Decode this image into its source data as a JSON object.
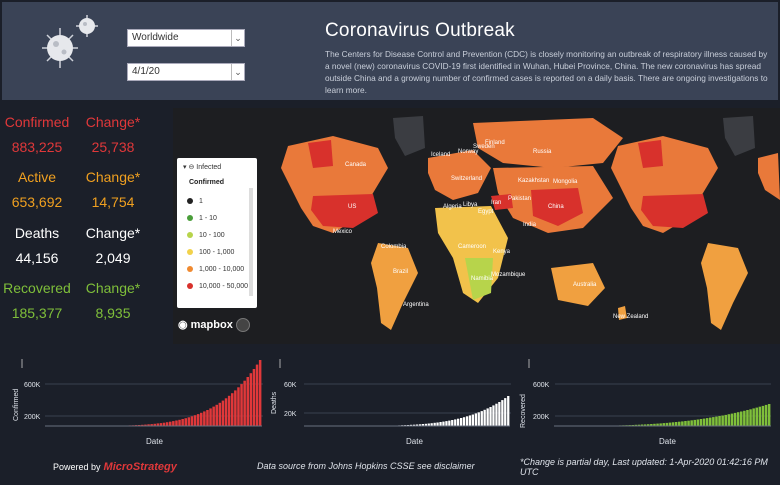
{
  "header": {
    "title": "Coronavirus Outbreak",
    "description": "The Centers for Disease Control and Prevention (CDC) is closely monitoring an outbreak of respiratory illness caused by a novel (new) coronavirus COVID-19 first identified in Wuhan, Hubei Province, China. The new coronavirus has spread outside China and a growing number of confirmed cases is reported on a daily basis. There are ongoing investigations to learn more.",
    "region_select": "Worldwide",
    "date_select": "4/1/20"
  },
  "stats": {
    "confirmed": {
      "label": "Confirmed",
      "value": "883,225",
      "change_label": "Change*",
      "change": "25,738"
    },
    "active": {
      "label": "Active",
      "value": "653,692",
      "change_label": "Change*",
      "change": "14,754"
    },
    "deaths": {
      "label": "Deaths",
      "value": "44,156",
      "change_label": "Change*",
      "change": "2,049"
    },
    "recovered": {
      "label": "Recovered",
      "value": "185,377",
      "change_label": "Change*",
      "change": "8,935"
    }
  },
  "map": {
    "legend_title": "Infected",
    "legend_subtitle": "Confirmed",
    "legend_items": [
      {
        "label": "1",
        "color": "#222222"
      },
      {
        "label": "1 - 10",
        "color": "#4a9e3a"
      },
      {
        "label": "10 - 100",
        "color": "#b7d44b"
      },
      {
        "label": "100 - 1,000",
        "color": "#f2d24b"
      },
      {
        "label": "1,000 - 10,000",
        "color": "#f08a30"
      },
      {
        "label": "10,000 - 50,000",
        "color": "#d8312c"
      }
    ],
    "attribution": "mapbox",
    "labels": [
      "Russia",
      "Canada",
      "US",
      "Brazil",
      "China",
      "India",
      "Mongolia",
      "Kazakhstan",
      "Iceland",
      "Norway",
      "Sweden",
      "Finland",
      "Mexico",
      "Colombia",
      "Argentina",
      "Algeria",
      "Libya",
      "Egypt",
      "Cameroon",
      "Kenya",
      "Mozambique",
      "Namibia",
      "Australia",
      "New Zealand",
      "Switzerland",
      "Pakistan",
      "Iran"
    ]
  },
  "charts": [
    {
      "ylabel": "Confirmed",
      "yticks": [
        "600K",
        "200K"
      ],
      "xlabel": "Date",
      "color": "#e0383a"
    },
    {
      "ylabel": "Deaths",
      "yticks": [
        "60K",
        "20K"
      ],
      "xlabel": "Date",
      "color": "#ffffff"
    },
    {
      "ylabel": "Recovered",
      "yticks": [
        "600K",
        "200K"
      ],
      "xlabel": "Date",
      "color": "#7fbf3a"
    }
  ],
  "footer": {
    "powered_by": "Powered by",
    "brand": "MicroStrategy",
    "source": "Data source from Johns Hopkins CSSE see disclaimer",
    "note": "*Change is partial day, Last updated: 1-Apr-2020 01:42:16 PM UTC"
  },
  "colors": {
    "accent_red": "#e0383a",
    "accent_orange": "#f0a020",
    "accent_green": "#7fbf3a"
  }
}
